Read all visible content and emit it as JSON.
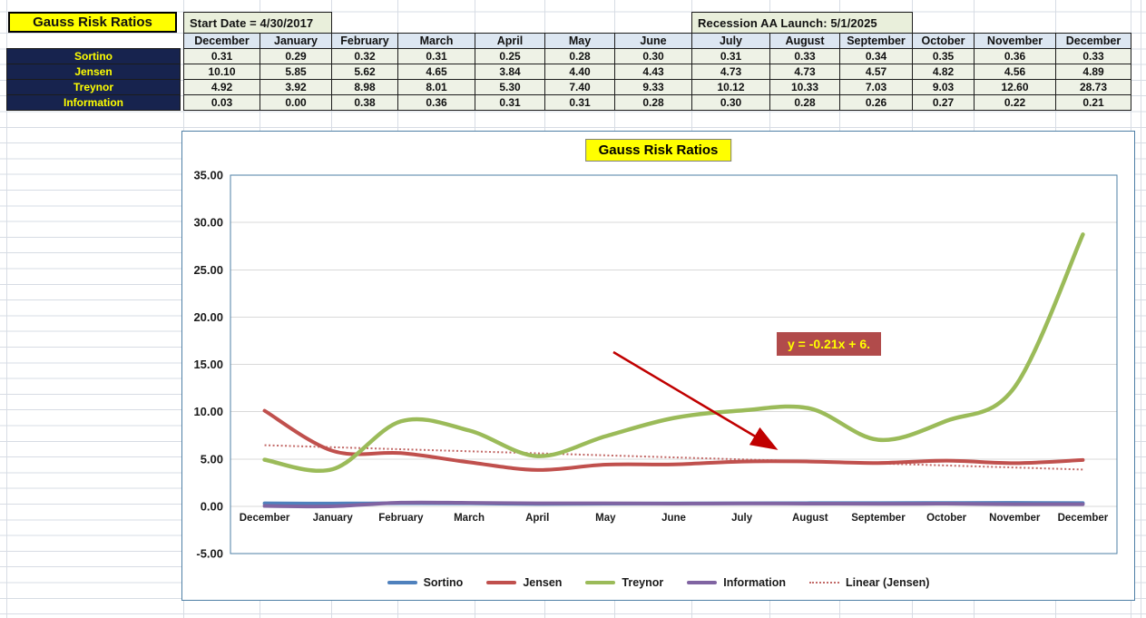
{
  "cells": {
    "title": "Gauss Risk Ratios",
    "start_date": "Start Date = 4/30/2017",
    "recession": "Recession AA Launch:  5/1/2025"
  },
  "table": {
    "columns": [
      "December",
      "January",
      "February",
      "March",
      "April",
      "May",
      "June",
      "July",
      "August",
      "September",
      "October",
      "November",
      "December"
    ],
    "rows": [
      {
        "label": "Sortino",
        "values": [
          "0.31",
          "0.29",
          "0.32",
          "0.31",
          "0.25",
          "0.28",
          "0.30",
          "0.31",
          "0.33",
          "0.34",
          "0.35",
          "0.36",
          "0.33"
        ]
      },
      {
        "label": "Jensen",
        "values": [
          "10.10",
          "5.85",
          "5.62",
          "4.65",
          "3.84",
          "4.40",
          "4.43",
          "4.73",
          "4.73",
          "4.57",
          "4.82",
          "4.56",
          "4.89"
        ]
      },
      {
        "label": "Treynor",
        "values": [
          "4.92",
          "3.92",
          "8.98",
          "8.01",
          "5.30",
          "7.40",
          "9.33",
          "10.12",
          "10.33",
          "7.03",
          "9.03",
          "12.60",
          "28.73"
        ]
      },
      {
        "label": "Information",
        "values": [
          "0.03",
          "0.00",
          "0.38",
          "0.36",
          "0.31",
          "0.31",
          "0.28",
          "0.30",
          "0.28",
          "0.26",
          "0.27",
          "0.22",
          "0.21"
        ]
      }
    ]
  },
  "chart_data": {
    "type": "line",
    "title": "Gauss Risk Ratios",
    "categories": [
      "December",
      "January",
      "February",
      "March",
      "April",
      "May",
      "June",
      "July",
      "August",
      "September",
      "October",
      "November",
      "December"
    ],
    "series": [
      {
        "name": "Sortino",
        "color": "#4F81BD",
        "width": 4,
        "values": [
          0.31,
          0.29,
          0.32,
          0.31,
          0.25,
          0.28,
          0.3,
          0.31,
          0.33,
          0.34,
          0.35,
          0.36,
          0.33
        ]
      },
      {
        "name": "Jensen",
        "color": "#C0504D",
        "width": 4,
        "values": [
          10.1,
          5.85,
          5.62,
          4.65,
          3.84,
          4.4,
          4.43,
          4.73,
          4.73,
          4.57,
          4.82,
          4.56,
          4.89
        ]
      },
      {
        "name": "Treynor",
        "color": "#9BBB59",
        "width": 4.5,
        "values": [
          4.92,
          3.92,
          8.98,
          8.01,
          5.3,
          7.4,
          9.33,
          10.12,
          10.33,
          7.03,
          9.03,
          12.6,
          28.73
        ]
      },
      {
        "name": "Information",
        "color": "#8064A2",
        "width": 4,
        "values": [
          0.03,
          0.0,
          0.38,
          0.36,
          0.31,
          0.31,
          0.28,
          0.3,
          0.28,
          0.26,
          0.27,
          0.22,
          0.21
        ]
      }
    ],
    "trendline": {
      "name": "Linear (Jensen)",
      "label": "y = -0.21x + 6.",
      "slope": -0.2145,
      "intercept": 6.67,
      "color": "#C26967"
    },
    "ylim": [
      -5,
      35
    ],
    "ytick_step": 5,
    "ytick_labels": [
      "35.00",
      "30.00",
      "25.00",
      "20.00",
      "15.00",
      "10.00",
      "5.00",
      "0.00",
      "-5.00"
    ],
    "grid": true,
    "legend_position": "bottom"
  },
  "colors": {
    "sheet_gridline": "#D7DCE4",
    "cell_border": "#1c1c1c",
    "banner_fill": "#E9EFDB",
    "header_fill": "#DCE6F1",
    "data_fill": "#EEF2E6",
    "label_fill": "#17234E",
    "label_text": "#FFFF00",
    "title_fill": "#FFFF00",
    "chart_border": "#4E7FA5",
    "plot_gridline": "#D9D9D9",
    "annotation_fill": "#B14B4B",
    "annotation_text": "#FFFF00",
    "arrow": "#C00000"
  }
}
